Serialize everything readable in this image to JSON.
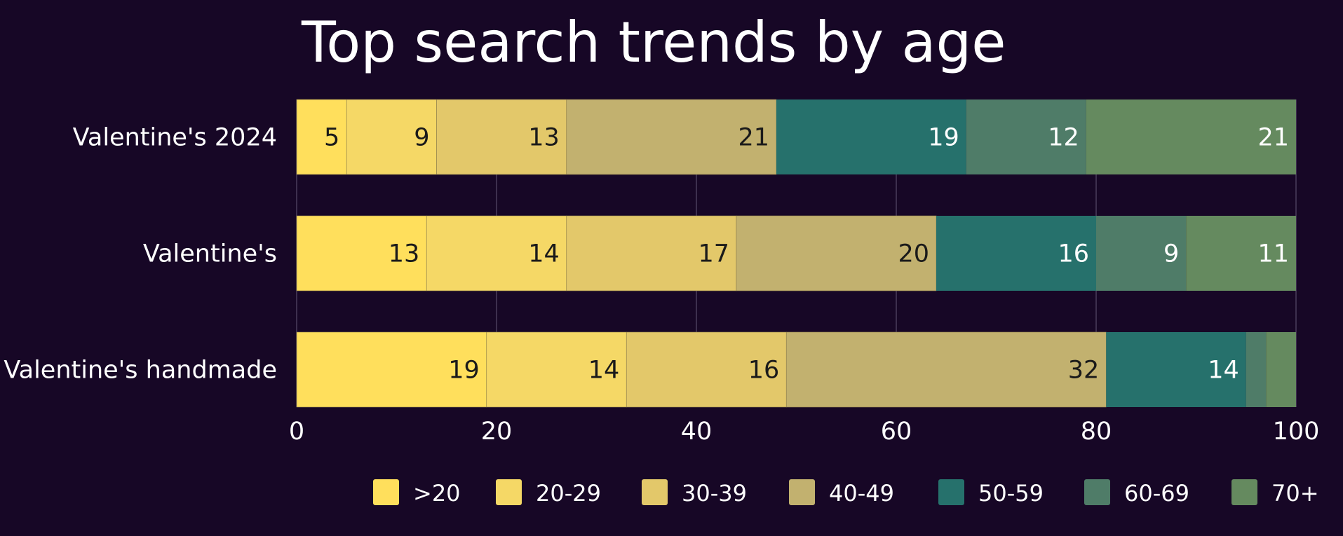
{
  "chart_data": {
    "type": "bar",
    "orientation": "horizontal",
    "stacked": true,
    "title": "Top search trends by age",
    "categories": [
      "Valentine's 2024",
      "Valentine's",
      "Valentine's handmade"
    ],
    "series": [
      {
        "name": ">20",
        "color": "#ffdf5c",
        "values": [
          5,
          13,
          19
        ]
      },
      {
        "name": "20-29",
        "color": "#f5d866",
        "values": [
          9,
          14,
          14
        ]
      },
      {
        "name": "30-39",
        "color": "#e3c86a",
        "values": [
          13,
          17,
          16
        ]
      },
      {
        "name": "40-49",
        "color": "#c2b16f",
        "values": [
          21,
          20,
          32
        ]
      },
      {
        "name": "50-59",
        "color": "#26716c",
        "values": [
          19,
          16,
          14
        ]
      },
      {
        "name": "60-69",
        "color": "#4f7c68",
        "values": [
          12,
          9,
          2
        ]
      },
      {
        "name": "70+",
        "color": "#658a5f",
        "values": [
          21,
          11,
          3
        ]
      }
    ],
    "value_labels": [
      [
        "5",
        "9",
        "13",
        "21",
        "19",
        "12",
        "21"
      ],
      [
        "13",
        "14",
        "17",
        "20",
        "16",
        "9",
        "11"
      ],
      [
        "19",
        "14",
        "16",
        "32",
        "14",
        "",
        ""
      ]
    ],
    "xlim": [
      0,
      100
    ],
    "xticks": [
      "0",
      "20",
      "40",
      "60",
      "80",
      "100"
    ],
    "grid": true,
    "legend_position": "bottom",
    "background": "#170726",
    "text_color": "#ffffff"
  }
}
